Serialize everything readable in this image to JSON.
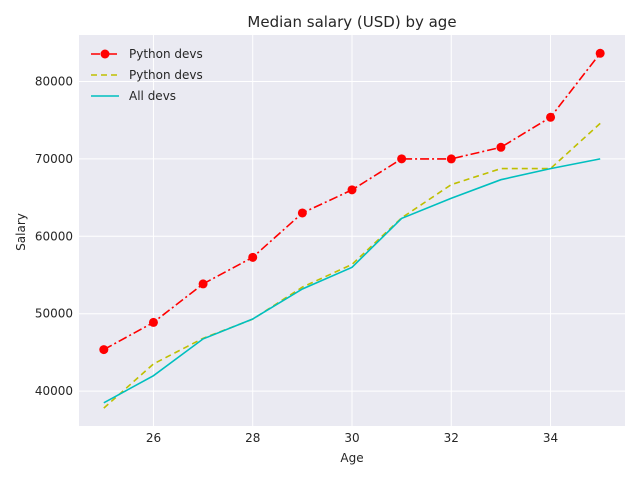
{
  "chart_data": {
    "type": "line",
    "title": "Median salary (USD) by age",
    "xlabel": "Age",
    "ylabel": "Salary",
    "x": [
      25,
      26,
      27,
      28,
      29,
      30,
      31,
      32,
      33,
      34,
      35
    ],
    "xlim": [
      24.5,
      35.5
    ],
    "ylim": [
      35500,
      86000
    ],
    "xticks": [
      26,
      28,
      30,
      32,
      34
    ],
    "yticks": [
      40000,
      50000,
      60000,
      70000,
      80000
    ],
    "grid": true,
    "legend": "top-left",
    "series": [
      {
        "name": "Python devs",
        "values": [
          45372,
          48876,
          53850,
          57287,
          63016,
          65998,
          70003,
          70000,
          71496,
          75370,
          83640
        ],
        "color": "#ff0000",
        "style": "dashdot-marker"
      },
      {
        "name": "Python devs",
        "values": [
          37810,
          43515,
          46823,
          49293,
          53437,
          56373,
          62375,
          66674,
          68745,
          68746,
          74583
        ],
        "color": "#bfbf00",
        "style": "dashed"
      },
      {
        "name": "All devs",
        "values": [
          38496,
          42000,
          46752,
          49320,
          53200,
          56000,
          62316,
          64928,
          67317,
          68748,
          70000
        ],
        "color": "#00bfbf",
        "style": "solid"
      }
    ],
    "colors": {
      "background": "#eaeaf2",
      "grid": "#ffffff",
      "text": "#262626"
    }
  }
}
